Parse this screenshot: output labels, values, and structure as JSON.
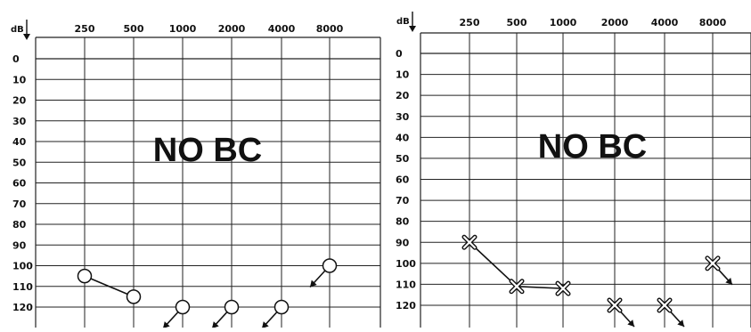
{
  "chart_data": [
    {
      "type": "scatter",
      "ylabel": "dB",
      "x_ticks": [
        "250",
        "500",
        "1000",
        "2000",
        "4000",
        "8000"
      ],
      "y_ticks": [
        "0",
        "10",
        "20",
        "30",
        "40",
        "50",
        "60",
        "70",
        "80",
        "90",
        "100",
        "110",
        "120"
      ],
      "annotation": "NO BC",
      "ylim": [
        0,
        120
      ],
      "y_inverted": true,
      "marker": "circle",
      "points": [
        {
          "x": "250",
          "y": 105,
          "arrow": false
        },
        {
          "x": "500",
          "y": 115,
          "arrow": false
        },
        {
          "x": "1000",
          "y": 120,
          "arrow": true
        },
        {
          "x": "2000",
          "y": 120,
          "arrow": true
        },
        {
          "x": "4000",
          "y": 120,
          "arrow": true
        },
        {
          "x": "8000",
          "y": 100,
          "arrow": true
        }
      ],
      "connected_segments": [
        [
          0,
          1
        ]
      ]
    },
    {
      "type": "scatter",
      "ylabel": "dB",
      "x_ticks": [
        "250",
        "500",
        "1000",
        "2000",
        "4000",
        "8000"
      ],
      "y_ticks": [
        "0",
        "10",
        "20",
        "30",
        "40",
        "50",
        "60",
        "70",
        "80",
        "90",
        "100",
        "110",
        "120"
      ],
      "annotation": "NO BC",
      "ylim": [
        0,
        120
      ],
      "y_inverted": true,
      "marker": "cross",
      "points": [
        {
          "x": "250",
          "y": 90,
          "arrow": false
        },
        {
          "x": "500",
          "y": 111,
          "arrow": false
        },
        {
          "x": "1000",
          "y": 112,
          "arrow": false
        },
        {
          "x": "2000",
          "y": 120,
          "arrow": true
        },
        {
          "x": "4000",
          "y": 120,
          "arrow": true
        },
        {
          "x": "8000",
          "y": 100,
          "arrow": true
        }
      ],
      "connected_segments": [
        [
          0,
          1
        ],
        [
          1,
          2
        ]
      ]
    }
  ]
}
